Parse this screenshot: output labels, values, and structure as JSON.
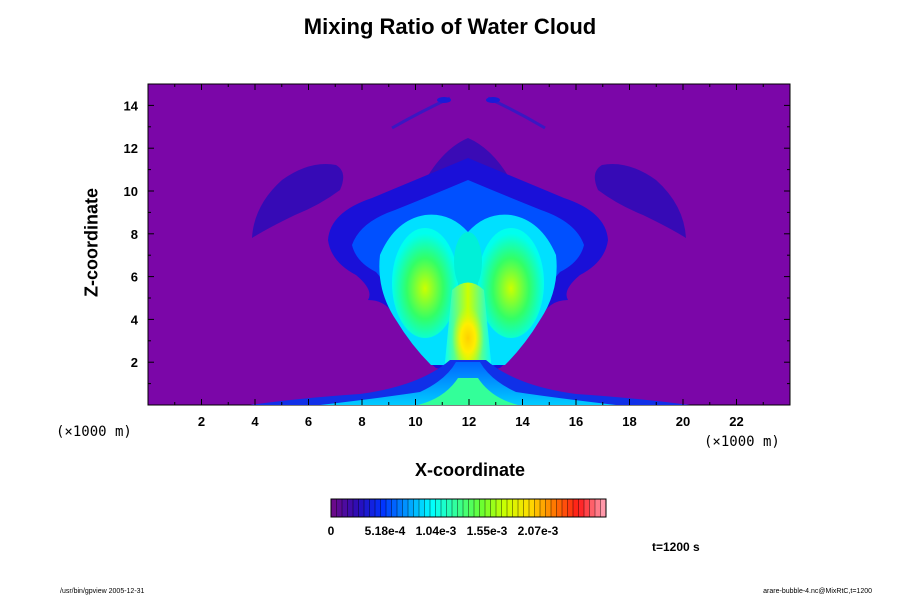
{
  "chart_data": {
    "type": "heatmap",
    "title": "Mixing Ratio of Water Cloud",
    "xlabel": "X-coordinate",
    "ylabel": "Z-coordinate",
    "x_unit": "(×1000 m)",
    "y_unit": "(×1000 m)",
    "xlim": [
      0,
      24
    ],
    "ylim": [
      0,
      15
    ],
    "xticks": [
      2,
      4,
      6,
      8,
      10,
      12,
      14,
      16,
      18,
      20,
      22
    ],
    "yticks": [
      2,
      4,
      6,
      8,
      10,
      12,
      14
    ],
    "colorbar": {
      "range": [
        0,
        0.0026
      ],
      "tick_labels": [
        "0",
        "5.18e-4",
        "1.04e-3",
        "1.55e-3",
        "2.07e-3"
      ],
      "colors": [
        "#6a0a8a",
        "#2a0cb8",
        "#0033ff",
        "#0099ff",
        "#00ffff",
        "#33ff99",
        "#66ff33",
        "#ccff00",
        "#ffdd00",
        "#ff7700",
        "#ff1a1a",
        "#ff99aa"
      ]
    },
    "background_color": "#7b06a8",
    "time_label": "t=1200 s"
  },
  "footer": {
    "left": "/usr/bin/gpview 2005-12-31",
    "right": "arare-bubble-4.nc@MixRtC,t=1200"
  }
}
